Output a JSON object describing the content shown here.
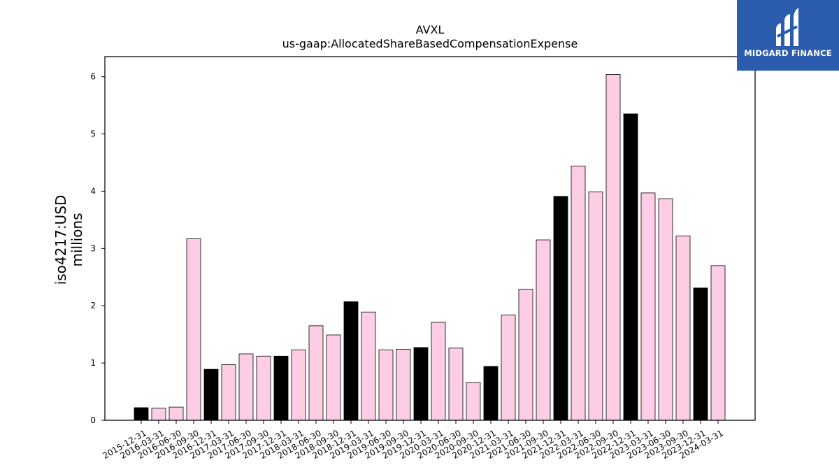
{
  "chart_data": {
    "type": "bar",
    "title": "AVXL",
    "subtitle": "us-gaap:AllocatedShareBasedCompensationExpense",
    "ylabel_line1": "iso4217:USD",
    "ylabel_line2": "millions",
    "xlabel": "",
    "ylim": [
      0,
      6.35
    ],
    "yticks": [
      0,
      1,
      2,
      3,
      4,
      5,
      6
    ],
    "grid": false,
    "categories": [
      "2015-12-31",
      "2016-03-31",
      "2016-06-30",
      "2016-09-30",
      "2016-12-31",
      "2017-03-31",
      "2017-06-30",
      "2017-09-30",
      "2017-12-31",
      "2018-03-31",
      "2018-06-30",
      "2018-09-30",
      "2018-12-31",
      "2019-03-31",
      "2019-06-30",
      "2019-09-30",
      "2019-12-31",
      "2020-03-31",
      "2020-06-30",
      "2020-09-30",
      "2020-12-31",
      "2021-03-31",
      "2021-06-30",
      "2021-09-30",
      "2021-12-31",
      "2022-03-31",
      "2022-06-30",
      "2022-09-30",
      "2022-12-31",
      "2023-03-31",
      "2023-06-30",
      "2023-09-30",
      "2023-12-31",
      "2024-03-31"
    ],
    "values": [
      0.22,
      0.21,
      0.23,
      3.17,
      0.89,
      0.97,
      1.16,
      1.12,
      1.12,
      1.23,
      1.65,
      1.49,
      2.07,
      1.89,
      1.23,
      1.24,
      1.27,
      1.71,
      1.26,
      0.66,
      0.94,
      1.84,
      2.29,
      3.15,
      3.91,
      4.44,
      3.99,
      6.04,
      5.35,
      3.97,
      3.87,
      3.22,
      2.31,
      2.7
    ],
    "highlight": [
      true,
      false,
      false,
      false,
      true,
      false,
      false,
      false,
      true,
      false,
      false,
      false,
      true,
      false,
      false,
      false,
      true,
      false,
      false,
      false,
      true,
      false,
      false,
      false,
      true,
      false,
      false,
      false,
      true,
      false,
      false,
      false,
      true,
      false
    ],
    "colors": {
      "bar": "#fccde5",
      "highlight": "#000000",
      "edge": "#000000"
    }
  },
  "logo": {
    "text": "MIDGARD FINANCE",
    "background": "#2b5cae"
  }
}
